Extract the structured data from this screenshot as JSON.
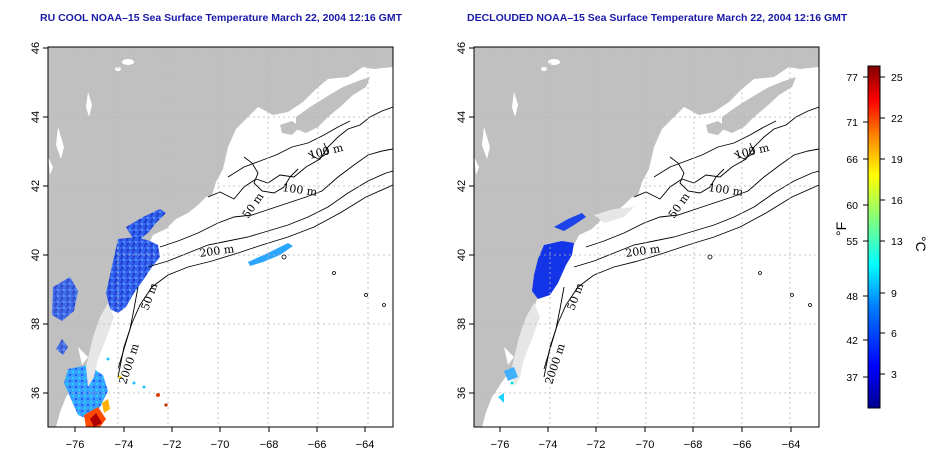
{
  "panels": [
    {
      "id": "left",
      "title": "RU COOL NOAA–15 Sea Surface Temperature March 22, 2004 12:16 GMT",
      "contour_labels": [
        "100 m",
        "100 m",
        "50 m",
        "200 m",
        "50 m",
        "2000 m"
      ]
    },
    {
      "id": "right",
      "title": "DECLOUDED NOAA–15 Sea Surface Temperature March 22, 2004 12:16 GMT",
      "contour_labels": [
        "100 m",
        "100 m",
        "50 m",
        "200 m",
        "50 m",
        "2000 m"
      ]
    }
  ],
  "axes": {
    "lon_ticks": [
      "−76",
      "−74",
      "−72",
      "−70",
      "−68",
      "−66",
      "−64"
    ],
    "lat_ticks": [
      "36",
      "38",
      "40",
      "42",
      "44",
      "46"
    ],
    "lon_range": [
      -77.2,
      -63
    ],
    "lat_range": [
      35,
      46
    ]
  },
  "colorbar": {
    "f_ticks": [
      "77",
      "71",
      "66",
      "60",
      "55",
      "48",
      "42",
      "37"
    ],
    "c_ticks": [
      "25",
      "22",
      "19",
      "16",
      "13",
      "9",
      "6",
      "3"
    ],
    "f_label": "°F",
    "c_label": "°C",
    "colors": [
      "#00008f",
      "#0000ff",
      "#0080ff",
      "#00ffff",
      "#80ff80",
      "#ffff00",
      "#ff8000",
      "#ff0000",
      "#800000"
    ]
  },
  "colors": {
    "land": "#c0c0c0",
    "grid": "#b5b5b5",
    "title": "#1a1aa8"
  }
}
